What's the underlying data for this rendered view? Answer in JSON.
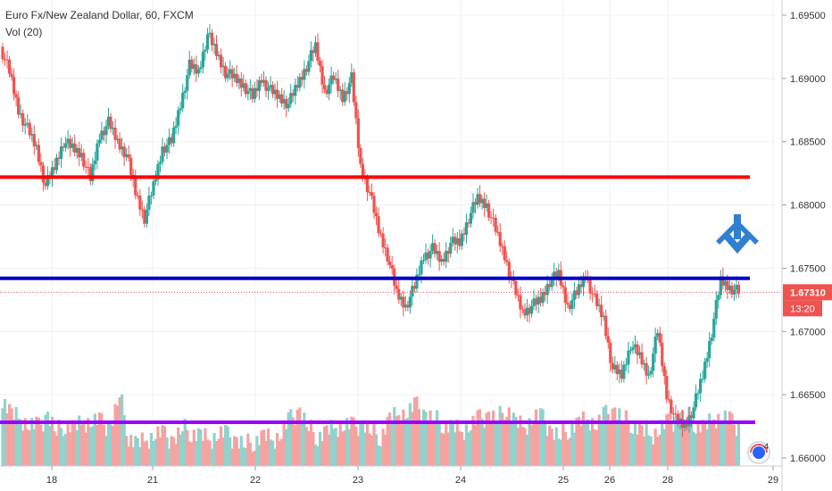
{
  "legend": {
    "symbol_line": "Euro Fx/New Zealand Dollar, 60, FXCM",
    "volume_line": "Vol (20)"
  },
  "price_axis": {
    "ticks": [
      "1.69500",
      "1.69000",
      "1.68500",
      "1.68000",
      "1.67500",
      "1.67000",
      "1.66500",
      "1.66000"
    ],
    "current_price_label": "1.67310",
    "countdown_label": "13:20"
  },
  "time_axis": {
    "ticks": [
      "18",
      "21",
      "22",
      "23",
      "24",
      "25",
      "26",
      "28",
      "29"
    ]
  },
  "colors": {
    "up": "#26a69a",
    "down": "#ef5350",
    "up_volume": "#8fd3cc",
    "down_volume": "#f4a3a1",
    "red_level": "#ff0000",
    "blue_level": "#0000cc",
    "purple_level": "#9900ff",
    "arrow": "#2f80d1",
    "price_badge": "#ef5350"
  },
  "annotations": {
    "arrow_icon": "arrow-down-icon",
    "logo_icon": "tradingview-logo-icon",
    "logo_badge": "4"
  },
  "chart_data": {
    "type": "candlestick",
    "title": "Euro Fx/New Zealand Dollar, 60, FXCM",
    "y_range": [
      1.6595,
      1.6958
    ],
    "x_labels": [
      "18",
      "21",
      "22",
      "23",
      "24",
      "25",
      "26",
      "28",
      "29"
    ],
    "horizontal_levels": [
      {
        "price": 1.6822,
        "color": "#ff0000"
      },
      {
        "price": 1.6742,
        "color": "#0000cc"
      },
      {
        "price": 1.6731,
        "color": "#ef5350",
        "style": "dotted",
        "label": "1.67310"
      }
    ],
    "volume_level_line": {
      "color": "#9900ff"
    },
    "price_path": [
      1.6925,
      1.6905,
      1.6875,
      1.686,
      1.6845,
      1.6815,
      1.683,
      1.685,
      1.6845,
      1.684,
      1.682,
      1.6855,
      1.6865,
      1.685,
      1.684,
      1.681,
      1.679,
      1.6815,
      1.6845,
      1.685,
      1.688,
      1.691,
      1.6905,
      1.6935,
      1.692,
      1.6905,
      1.69,
      1.6895,
      1.6885,
      1.69,
      1.689,
      1.6885,
      1.688,
      1.6895,
      1.691,
      1.6925,
      1.689,
      1.69,
      1.6885,
      1.69,
      1.683,
      1.681,
      1.678,
      1.676,
      1.673,
      1.672,
      1.6735,
      1.676,
      1.6765,
      1.6755,
      1.677,
      1.677,
      1.679,
      1.6805,
      1.68,
      1.678,
      1.676,
      1.6735,
      1.6715,
      1.672,
      1.6725,
      1.674,
      1.6745,
      1.672,
      1.673,
      1.6745,
      1.6725,
      1.671,
      1.667,
      1.6665,
      1.669,
      1.668,
      1.6665,
      1.67,
      1.665,
      1.663,
      1.6625,
      1.664,
      1.6665,
      1.67,
      1.674,
      1.6735,
      1.6731
    ],
    "volume_path": [
      0.8,
      0.6,
      0.55,
      0.5,
      0.45,
      0.6,
      0.4,
      0.5,
      0.45,
      0.5,
      0.55,
      0.5,
      0.45,
      0.85,
      0.35,
      0.25,
      0.3,
      0.4,
      0.35,
      0.3,
      0.45,
      0.4,
      0.35,
      0.3,
      0.4,
      0.35,
      0.3,
      0.25,
      0.3,
      0.35,
      0.3,
      0.4,
      0.55,
      0.65,
      0.45,
      0.35,
      0.4,
      0.45,
      0.5,
      0.45,
      0.5,
      0.4,
      0.35,
      0.55,
      0.6,
      0.65,
      0.7,
      0.6,
      0.55,
      0.5,
      0.45,
      0.4,
      0.5,
      0.55,
      0.6,
      0.55,
      0.7,
      0.5,
      0.45,
      0.6,
      0.55,
      0.4,
      0.35,
      0.45,
      0.5,
      0.55,
      0.5,
      0.6,
      0.65,
      0.55,
      0.5,
      0.4,
      0.35,
      0.45,
      0.5,
      0.55,
      0.6,
      0.5,
      0.45,
      0.55,
      0.6,
      0.5,
      0.45
    ]
  }
}
